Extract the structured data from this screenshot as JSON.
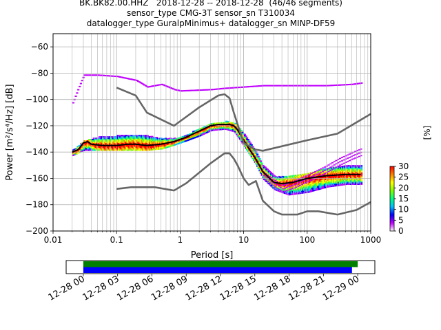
{
  "titles": {
    "line1": "BK.BK82.00.HHZ   2018-12-28 -- 2018-12-28  (46/46 segments)",
    "line2": "sensor_type CMG-3T sensor_sn T310034",
    "line3": "datalogger_type GuralpMinimus+ datalogger_sn MINP-DF59"
  },
  "chart_data": [
    {
      "type": "heatmap",
      "subtype": "probabilistic power spectral density",
      "xlabel": "Period [s]",
      "ylabel": "Power [m²/s⁴/Hz] [dB]",
      "xscale": "log",
      "xlim": [
        0.01,
        1000
      ],
      "ylim": [
        -200,
        -50
      ],
      "xticks": [
        0.01,
        0.1,
        1,
        10,
        100,
        1000
      ],
      "xtick_labels": [
        "0.01",
        "0.1",
        "1",
        "10",
        "100",
        "1000"
      ],
      "yticks": [
        -200,
        -180,
        -160,
        -140,
        -120,
        -100,
        -80,
        -60
      ],
      "ytick_labels": [
        "−200",
        "−180",
        "−160",
        "−140",
        "−120",
        "−100",
        "−80",
        "−60"
      ],
      "grid": true,
      "colorbar": {
        "label": "[%]",
        "min": 0,
        "max": 30,
        "ticks": [
          0,
          5,
          10,
          15,
          20,
          25,
          30
        ],
        "tick_labels": [
          "0",
          "5",
          "10",
          "15",
          "20",
          "25",
          "30"
        ],
        "colors": [
          "#ffffff",
          "#c000ff",
          "#0000ff",
          "#00c0ff",
          "#00ff80",
          "#80ff00",
          "#ffff00",
          "#ff8000",
          "#ff0000"
        ]
      },
      "series": [
        {
          "style": "mode_line",
          "color": "#000000",
          "x": [
            0.02,
            0.025,
            0.03,
            0.035,
            0.04,
            0.06,
            0.1,
            0.15,
            0.2,
            0.3,
            0.5,
            0.8,
            1.2,
            2,
            3,
            4,
            5,
            6,
            7,
            8,
            10,
            12,
            15,
            20,
            30,
            40,
            60,
            100,
            200,
            400,
            700
          ],
          "y": [
            -140,
            -138,
            -133,
            -132,
            -134,
            -135,
            -135,
            -134,
            -134,
            -135,
            -134,
            -132,
            -129,
            -124,
            -120,
            -119,
            -119,
            -119,
            -120,
            -123,
            -131,
            -137,
            -144,
            -155,
            -163,
            -164,
            -163,
            -160,
            -158,
            -157,
            -157
          ]
        },
        {
          "style": "noise_model",
          "color": "#666666",
          "x": [
            0.1,
            0.2,
            0.3,
            0.8,
            2,
            4,
            5,
            6,
            7,
            10,
            15,
            20,
            100,
            300,
            1000
          ],
          "y": [
            -91,
            -97,
            -110,
            -120,
            -106,
            -97,
            -96,
            -99,
            -110,
            -133,
            -138,
            -139,
            -131,
            -126,
            -111
          ]
        },
        {
          "style": "noise_model",
          "color": "#666666",
          "x": [
            0.1,
            0.17,
            0.4,
            0.8,
            1.25,
            3,
            5,
            6,
            7,
            8,
            10,
            12,
            15.6,
            20,
            30,
            40,
            70,
            100,
            150,
            300,
            600,
            1000
          ],
          "y": [
            -168,
            -166.7,
            -166.7,
            -169.2,
            -163.7,
            -148.6,
            -141,
            -141,
            -145,
            -150,
            -160,
            -165,
            -162,
            -177,
            -185,
            -187.5,
            -187.5,
            -185,
            -185,
            -187.5,
            -184,
            -178
          ]
        }
      ],
      "density_bands": [
        {
          "x": [
            0.02,
            0.03,
            0.05,
            0.1,
            0.2,
            0.3,
            0.5,
            0.8,
            1.2,
            2,
            3,
            5,
            7,
            10,
            15,
            20,
            30,
            50,
            100,
            200,
            400,
            700
          ],
          "low": [
            -142,
            -138,
            -138,
            -138,
            -138,
            -138,
            -137,
            -134,
            -131,
            -127,
            -123,
            -122,
            -124,
            -135,
            -148,
            -160,
            -168,
            -172,
            -170,
            -166,
            -164,
            -164
          ],
          "high": [
            -138,
            -131,
            -128,
            -127,
            -126,
            -127,
            -129,
            -129,
            -127,
            -121,
            -118,
            -116,
            -117,
            -126,
            -139,
            -150,
            -158,
            -158,
            -155,
            -152,
            -150,
            -150
          ]
        }
      ],
      "outlier_line": {
        "x": [
          0.02,
          0.025,
          0.03,
          0.05,
          0.1,
          0.2,
          0.3,
          0.5,
          0.8,
          1,
          3,
          5,
          10,
          20,
          50,
          100,
          200,
          500,
          700
        ],
        "y": [
          -102,
          -90,
          -81,
          -81,
          -82,
          -85,
          -90,
          -88,
          -92,
          -93,
          -92,
          -91,
          -90,
          -89,
          -89,
          -89,
          -89,
          -88,
          -87
        ]
      },
      "lower_scatter": {
        "x": [
          20,
          30,
          40,
          60,
          100,
          150,
          200,
          300,
          500,
          700
        ],
        "y": [
          -160,
          -166,
          -170,
          -167,
          -162,
          -158,
          -155,
          -150,
          -145,
          -142
        ]
      }
    },
    {
      "type": "timeline",
      "xlabel": "",
      "xlim": [
        "2018-12-27 22:30",
        "2018-12-29 01:30"
      ],
      "xtick_labels": [
        "12-28 00",
        "12-28 03",
        "12-28 06",
        "12-28 09",
        "12-28 12",
        "12-28 15",
        "12-28 18",
        "12-28 21",
        "12-29 00"
      ],
      "bars": [
        {
          "color": "#008000",
          "start": "2018-12-28 00:00",
          "end": "2018-12-29 00:00"
        },
        {
          "color": "#0000ff",
          "start": "2018-12-28 00:00",
          "end": "2018-12-28 23:30"
        }
      ]
    }
  ]
}
